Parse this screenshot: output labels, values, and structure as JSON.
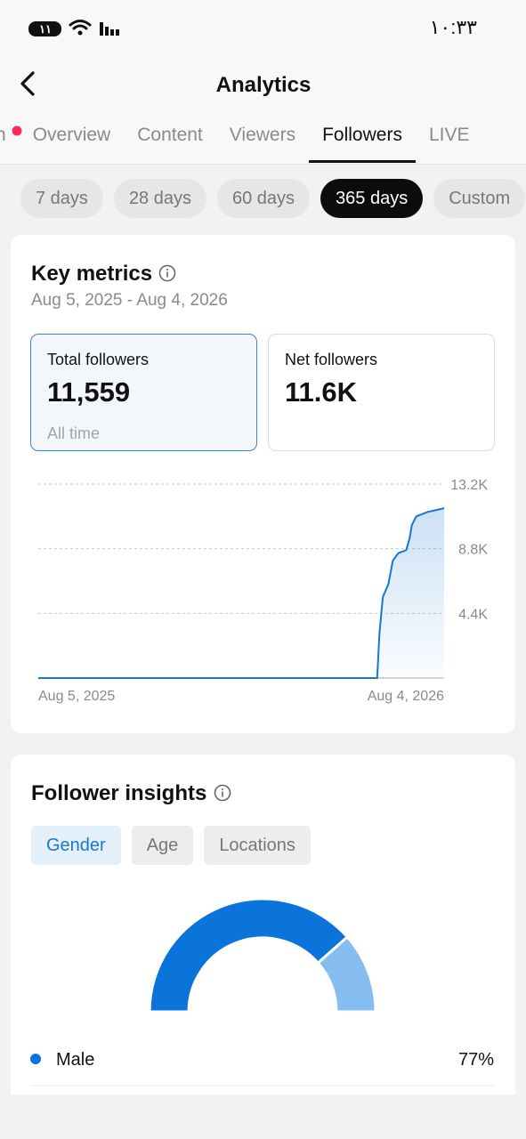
{
  "status_bar": {
    "time": "١٠:٣٣",
    "battery": "١١"
  },
  "header": {
    "title": "Analytics"
  },
  "tabs": {
    "items": [
      "n",
      "Overview",
      "Content",
      "Viewers",
      "Followers",
      "LIVE"
    ],
    "active": 4
  },
  "ranges": {
    "items": [
      "7 days",
      "28 days",
      "60 days",
      "365 days",
      "Custom"
    ],
    "active": 3
  },
  "key_metrics": {
    "title": "Key metrics",
    "date_range": "Aug 5, 2025 - Aug 4, 2026",
    "cards": [
      {
        "label": "Total followers",
        "value": "11,559",
        "note": "All time"
      },
      {
        "label": "Net followers",
        "value": "11.6K"
      }
    ]
  },
  "follower_insights": {
    "title": "Follower insights",
    "tabs": {
      "items": [
        "Gender",
        "Age",
        "Locations"
      ],
      "active": 0
    }
  },
  "chart_data": [
    {
      "type": "line",
      "x": [
        0,
        291,
        304,
        306,
        309,
        314,
        318,
        323,
        330,
        333,
        335,
        339,
        349,
        364
      ],
      "values": [
        0,
        0,
        0,
        3000,
        5500,
        6400,
        8000,
        8500,
        8700,
        9500,
        10400,
        11000,
        11300,
        11559
      ],
      "color": "#1677d2",
      "xlim": [
        0,
        364
      ],
      "xticks": [
        {
          "value": 0,
          "label": "Aug 5, 2025"
        },
        {
          "value": 364,
          "label": "Aug 4, 2026"
        }
      ],
      "ylim": [
        0,
        13200
      ],
      "yticks": [
        {
          "value": 4400,
          "label": "4.4K"
        },
        {
          "value": 8800,
          "label": "8.8K"
        },
        {
          "value": 13200,
          "label": "13.2K"
        }
      ],
      "grid": true
    },
    {
      "type": "donut",
      "categories": [
        "Male",
        null
      ],
      "values": [
        77,
        23
      ],
      "value_labels": [
        "77%",
        null
      ],
      "colors": [
        "#0a74da",
        "#84bdee"
      ]
    }
  ]
}
